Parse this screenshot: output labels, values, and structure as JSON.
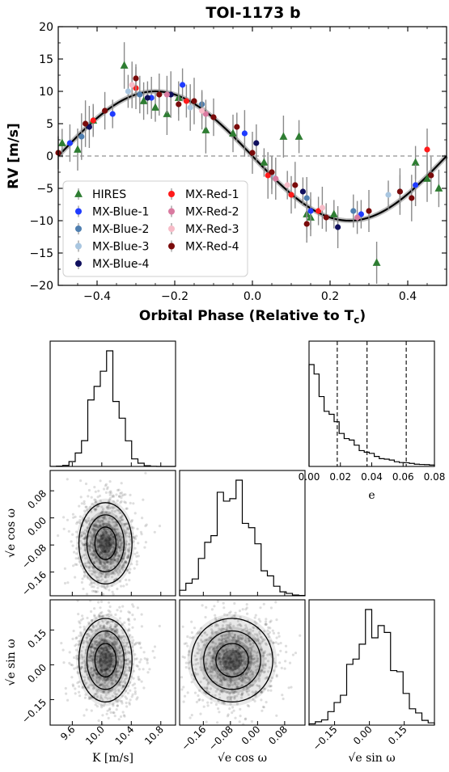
{
  "chart_data": [
    {
      "type": "scatter",
      "title": "TOI-1173 b",
      "xlabel": "Orbital Phase (Relative to T",
      "xlabel_sub": "c",
      "xlabel_close": ")",
      "ylabel": "RV [m/s]",
      "xlim": [
        -0.5,
        0.5
      ],
      "ylim": [
        -20,
        20
      ],
      "xticks": [
        -0.4,
        -0.2,
        0.0,
        0.2,
        0.4
      ],
      "xtick_labels": [
        "−0.4",
        "−0.2",
        "0.0",
        "0.2",
        "0.4"
      ],
      "yticks": [
        -20,
        -15,
        -10,
        -5,
        0,
        5,
        10,
        15,
        20
      ],
      "ytick_labels": [
        "−20",
        "−15",
        "−10",
        "−5",
        "0",
        "5",
        "10",
        "15",
        "20"
      ],
      "model": {
        "type": "sinusoid",
        "amplitude": 10.0,
        "phase_of_max": -0.25
      },
      "zero_line": true,
      "legend_position": "lower-left",
      "series": [
        {
          "name": "HIRES",
          "color": "#2e7d32",
          "marker": "triangle",
          "points": [
            [
              -0.49,
              2.0
            ],
            [
              -0.45,
              1.0
            ],
            [
              -0.41,
              5.5
            ],
            [
              -0.33,
              14.0
            ],
            [
              -0.28,
              8.5
            ],
            [
              -0.25,
              7.5
            ],
            [
              -0.22,
              6.5
            ],
            [
              -0.19,
              9.0
            ],
            [
              -0.12,
              4.0
            ],
            [
              -0.05,
              3.5
            ],
            [
              0.03,
              -1.0
            ],
            [
              0.08,
              3.0
            ],
            [
              0.12,
              3.0
            ],
            [
              0.14,
              -9.0
            ],
            [
              0.15,
              -9.5
            ],
            [
              0.21,
              -9.0
            ],
            [
              0.32,
              -16.5
            ],
            [
              0.42,
              -1.0
            ],
            [
              0.45,
              -3.5
            ],
            [
              0.48,
              -5.0
            ]
          ]
        },
        {
          "name": "MX-Blue-1",
          "color": "#1f3bff",
          "marker": "circle",
          "points": [
            [
              -0.47,
              2.0
            ],
            [
              -0.36,
              6.5
            ],
            [
              -0.26,
              9.0
            ],
            [
              -0.18,
              11.0
            ],
            [
              -0.02,
              3.5
            ],
            [
              0.15,
              -8.5
            ],
            [
              0.28,
              -9.0
            ],
            [
              0.42,
              -4.5
            ]
          ]
        },
        {
          "name": "MX-Blue-2",
          "color": "#4f7fb0",
          "marker": "circle",
          "points": [
            [
              -0.44,
              3.0
            ],
            [
              -0.29,
              9.5
            ],
            [
              -0.13,
              8.0
            ],
            [
              0.14,
              -6.5
            ],
            [
              0.26,
              -8.5
            ],
            [
              0.38,
              -5.5
            ]
          ]
        },
        {
          "name": "MX-Blue-3",
          "color": "#a9c6e0",
          "marker": "circle",
          "points": [
            [
              -0.32,
              10.0
            ],
            [
              -0.16,
              7.5
            ],
            [
              0.05,
              -3.0
            ],
            [
              0.35,
              -6.0
            ]
          ]
        },
        {
          "name": "MX-Blue-4",
          "color": "#10105e",
          "marker": "circle",
          "points": [
            [
              -0.42,
              4.5
            ],
            [
              -0.27,
              9.0
            ],
            [
              -0.21,
              9.5
            ],
            [
              0.01,
              2.0
            ],
            [
              0.13,
              -5.5
            ],
            [
              0.22,
              -11.0
            ]
          ]
        },
        {
          "name": "MX-Red-1",
          "color": "#ff1a1a",
          "marker": "circle",
          "points": [
            [
              -0.41,
              5.5
            ],
            [
              -0.3,
              10.5
            ],
            [
              -0.17,
              8.5
            ],
            [
              0.04,
              -3.0
            ],
            [
              0.1,
              -6.0
            ],
            [
              0.17,
              -8.5
            ],
            [
              0.45,
              1.0
            ]
          ]
        },
        {
          "name": "MX-Red-2",
          "color": "#d97aa0",
          "marker": "circle",
          "points": [
            [
              -0.22,
              9.5
            ],
            [
              -0.12,
              6.5
            ],
            [
              0.06,
              -3.5
            ],
            [
              0.27,
              -9.5
            ]
          ]
        },
        {
          "name": "MX-Red-3",
          "color": "#f7bcc8",
          "marker": "circle",
          "points": [
            [
              -0.31,
              11.0
            ],
            [
              -0.13,
              7.0
            ],
            [
              0.09,
              -4.5
            ],
            [
              0.18,
              -8.0
            ]
          ]
        },
        {
          "name": "MX-Red-4",
          "color": "#7a0b0b",
          "marker": "circle",
          "points": [
            [
              -0.5,
              0.5
            ],
            [
              -0.43,
              5.0
            ],
            [
              -0.38,
              7.0
            ],
            [
              -0.3,
              12.0
            ],
            [
              -0.24,
              9.5
            ],
            [
              -0.19,
              8.0
            ],
            [
              -0.15,
              8.5
            ],
            [
              -0.1,
              6.0
            ],
            [
              -0.04,
              4.5
            ],
            [
              0.0,
              0.5
            ],
            [
              0.05,
              -2.5
            ],
            [
              0.11,
              -4.5
            ],
            [
              0.14,
              -10.5
            ],
            [
              0.19,
              -9.5
            ],
            [
              0.3,
              -8.5
            ],
            [
              0.38,
              -5.5
            ],
            [
              0.41,
              -6.5
            ],
            [
              0.46,
              -3.0
            ]
          ]
        }
      ]
    },
    {
      "type": "corner",
      "parameters": [
        {
          "label": "K [m/s]",
          "range": [
            9.3,
            11.0
          ],
          "ticks": [
            9.6,
            10.0,
            10.4,
            10.8
          ],
          "tick_labels": [
            "9.6",
            "10.0",
            "10.4",
            "10.8"
          ],
          "mean": 10.05,
          "sd": 0.18
        },
        {
          "label": "√e cos ω",
          "range": [
            -0.23,
            0.14
          ],
          "ticks": [
            -0.16,
            -0.08,
            0.0,
            0.08
          ],
          "tick_labels": [
            "−0.16",
            "−0.08",
            "0.00",
            "0.08"
          ],
          "mean": -0.075,
          "sd": 0.06
        },
        {
          "label": "√e sin ω",
          "range": [
            -0.26,
            0.28
          ],
          "ticks": [
            -0.15,
            0.0,
            0.15
          ],
          "tick_labels": [
            "−0.15",
            "0.00",
            "0.15"
          ],
          "mean": 0.02,
          "sd": 0.09
        }
      ],
      "e_histogram": {
        "label": "e",
        "range": [
          0.0,
          0.08
        ],
        "ticks": [
          0.0,
          0.02,
          0.04,
          0.06,
          0.08
        ],
        "tick_labels": [
          "0.00",
          "0.02",
          "0.04",
          "0.06",
          "0.08"
        ],
        "quantiles": [
          0.018,
          0.037,
          0.062
        ]
      }
    }
  ]
}
